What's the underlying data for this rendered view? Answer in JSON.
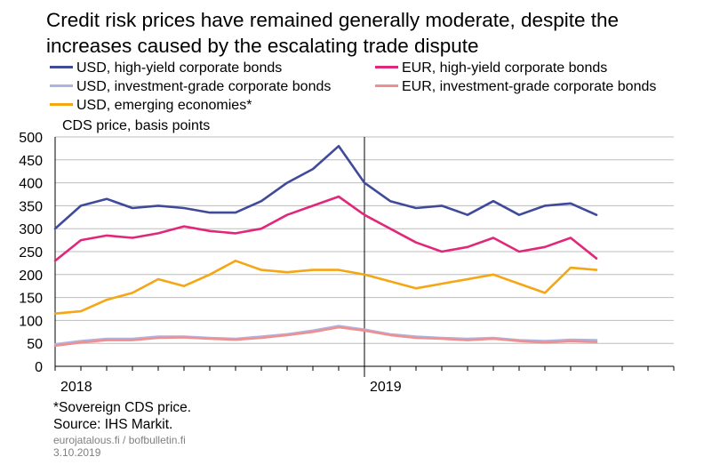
{
  "title": "Credit risk prices have remained generally moderate, despite the increases caused by the escalating trade dispute",
  "footnote": "*Sovereign CDS price.",
  "source": "Source: IHS Markit.",
  "site": "eurojatalous.fi  / bofbulletin.fi",
  "date": "3.10.2019",
  "chart_data": {
    "type": "line",
    "ylabel": "CDS price, basis points",
    "ylim": [
      0,
      500
    ],
    "yticks": [
      0,
      50,
      100,
      150,
      200,
      250,
      300,
      350,
      400,
      450,
      500
    ],
    "xlabels": [
      "2018",
      "2019"
    ],
    "x_range": [
      "2018-01",
      "2020-01"
    ],
    "grid": true,
    "legend": "top",
    "x": [
      "2018-01",
      "2018-02",
      "2018-03",
      "2018-04",
      "2018-05",
      "2018-06",
      "2018-07",
      "2018-08",
      "2018-09",
      "2018-10",
      "2018-11",
      "2018-12",
      "2019-01",
      "2019-02",
      "2019-03",
      "2019-04",
      "2019-05",
      "2019-06",
      "2019-07",
      "2019-08",
      "2019-09",
      "2019-10"
    ],
    "series": [
      {
        "name": "USD, high-yield corporate bonds",
        "color": "#3f4b9a",
        "values": [
          300,
          350,
          365,
          345,
          350,
          345,
          335,
          335,
          360,
          400,
          430,
          480,
          400,
          360,
          345,
          350,
          330,
          360,
          330,
          350,
          355,
          330
        ]
      },
      {
        "name": "EUR, high-yield corporate bonds",
        "color": "#e0287a",
        "values": [
          230,
          275,
          285,
          280,
          290,
          305,
          295,
          290,
          300,
          330,
          350,
          370,
          330,
          300,
          270,
          250,
          260,
          280,
          250,
          260,
          280,
          235
        ]
      },
      {
        "name": "USD, investment-grade corporate bonds",
        "color": "#aeb4e0",
        "values": [
          48,
          55,
          60,
          60,
          65,
          65,
          62,
          60,
          65,
          70,
          78,
          88,
          80,
          70,
          65,
          62,
          60,
          62,
          57,
          55,
          58,
          57
        ]
      },
      {
        "name": "EUR, investment-grade corporate bonds",
        "color": "#f08f8f",
        "values": [
          45,
          52,
          57,
          57,
          62,
          63,
          60,
          58,
          62,
          68,
          75,
          85,
          78,
          68,
          62,
          60,
          57,
          60,
          55,
          52,
          55,
          53
        ]
      },
      {
        "name": "USD, emerging economies*",
        "color": "#f5a614",
        "values": [
          115,
          120,
          145,
          160,
          190,
          175,
          200,
          230,
          210,
          205,
          210,
          210,
          200,
          185,
          170,
          180,
          190,
          200,
          180,
          160,
          215,
          210
        ]
      }
    ]
  }
}
